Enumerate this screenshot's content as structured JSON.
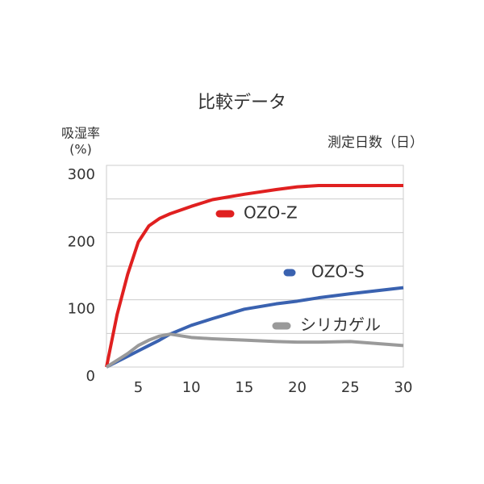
{
  "chart_data": {
    "type": "line",
    "title": "比較データ",
    "y_label_line1": "吸湿率",
    "y_label_line2": "(%)",
    "x_label": "測定日数（日）",
    "x": [
      2,
      3,
      4,
      5,
      6,
      7,
      8,
      10,
      12,
      15,
      18,
      20,
      22,
      25,
      30
    ],
    "series": [
      {
        "name": "OZO-Z",
        "color": "#e02020",
        "values": [
          0,
          78,
          138,
          186,
          210,
          221,
          228,
          239,
          249,
          257,
          264,
          268,
          270,
          270,
          270
        ]
      },
      {
        "name": "OZO-S",
        "color": "#3a62b0",
        "values": [
          0,
          8,
          16,
          24,
          32,
          40,
          49,
          62,
          72,
          86,
          94,
          98,
          103,
          109,
          118
        ]
      },
      {
        "name": "シリカゲル",
        "color": "#9a9a9a",
        "values": [
          0,
          10,
          20,
          32,
          40,
          46,
          49,
          44,
          42,
          40,
          38,
          37,
          37,
          38,
          32
        ]
      }
    ],
    "xlim": [
      2,
      30
    ],
    "xticks": [
      5,
      10,
      15,
      20,
      25,
      30
    ],
    "ylim": [
      0,
      300
    ],
    "yticks": [
      0,
      100,
      200,
      300
    ],
    "ygrid": [
      50,
      100,
      150,
      200,
      250
    ],
    "grid": true
  }
}
